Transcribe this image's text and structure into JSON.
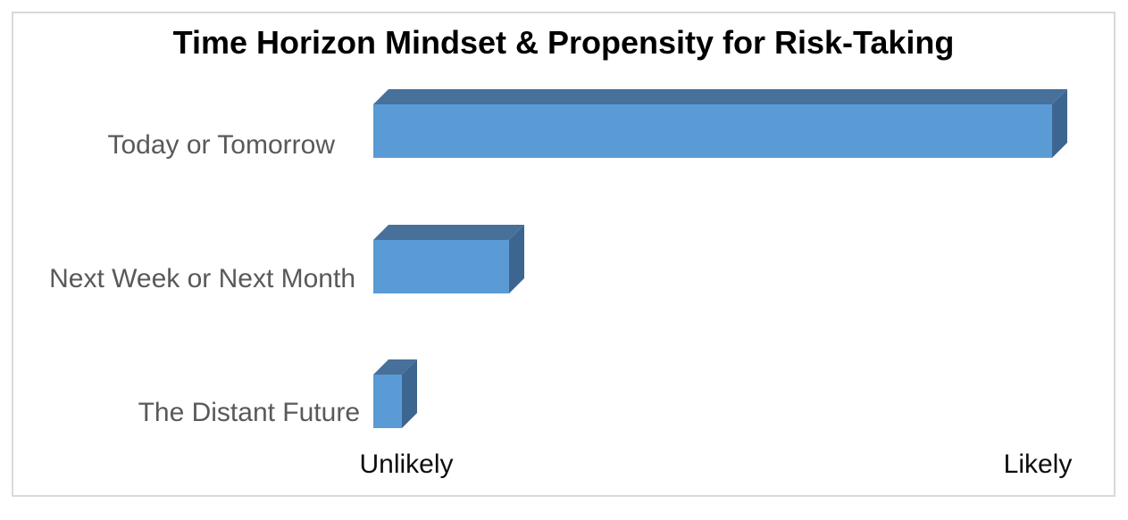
{
  "chart_data": {
    "type": "bar",
    "orientation": "horizontal",
    "style": "3d",
    "title": "Time Horizon Mindset & Propensity for Risk-Taking",
    "categories": [
      "Today or Tomorrow",
      "Next Week or Next Month",
      "The Distant Future"
    ],
    "values": [
      95,
      19,
      4
    ],
    "xlim": [
      0,
      100
    ],
    "xlabel_min": "Unlikely",
    "xlabel_max": "Likely",
    "grid": false,
    "legend": false,
    "axis_lines": false,
    "colors": {
      "bar_front": "#5B9BD5",
      "bar_top": "#47709B",
      "bar_side": "#3C6690",
      "category_label": "#595959",
      "axis_label": "#0D0D0D",
      "title": "#000000",
      "frame_border": "#D9D9D9",
      "background": "#FFFFFF"
    }
  }
}
